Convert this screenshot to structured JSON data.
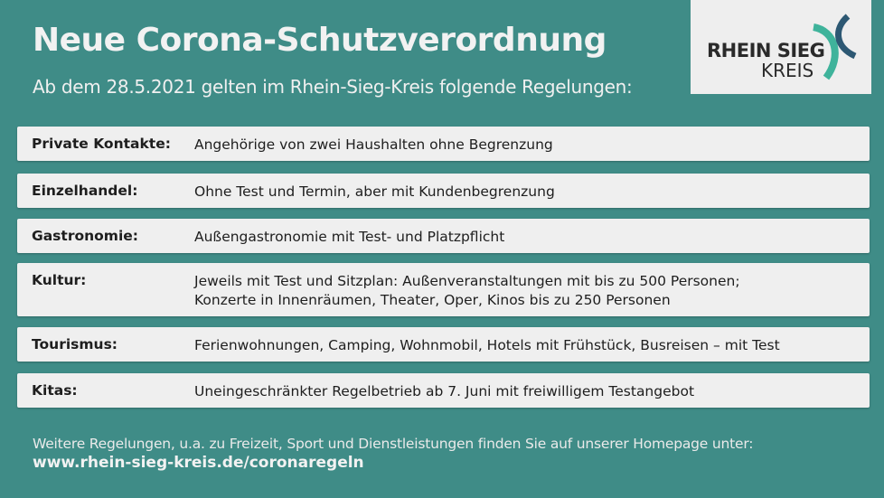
{
  "header": {
    "title": "Neue Corona-Schutzverordnung",
    "subtitle": "Ab dem 28.5.2021 gelten im Rhein-Sieg-Kreis folgende Regelungen:"
  },
  "logo": {
    "line1": "RHEIN SIEG",
    "line2": "KREIS",
    "colors": {
      "teal": "#3fb39b",
      "navy": "#2d5873"
    }
  },
  "rules": [
    {
      "label": "Private Kontakte:",
      "text": [
        "Angehörige von zwei Haushalten ohne Begrenzung"
      ]
    },
    {
      "label": "Einzelhandel:",
      "text": [
        "Ohne Test und Termin, aber mit Kundenbegrenzung"
      ]
    },
    {
      "label": "Gastronomie:",
      "text": [
        "Außengastronomie mit Test- und Platzpflicht"
      ]
    },
    {
      "label": "Kultur:",
      "text": [
        "Jeweils mit Test und Sitzplan: Außenveranstaltungen mit bis zu 500 Personen;",
        "Konzerte in Innenräumen, Theater, Oper, Kinos bis zu 250 Personen"
      ]
    },
    {
      "label": "Tourismus:",
      "text": [
        "Ferienwohnungen, Camping, Wohnmobil, Hotels mit Frühstück, Busreisen – mit Test"
      ]
    },
    {
      "label": "Kitas:",
      "text": [
        "Uneingeschränkter Regelbetrieb ab 7. Juni mit freiwilligem Testangebot"
      ]
    }
  ],
  "footer": {
    "text": "Weitere Regelungen, u.a. zu Freizeit, Sport und Dienstleistungen finden Sie auf unserer Homepage unter:",
    "url": "www.rhein-sieg-kreis.de/coronaregeln"
  },
  "colors": {
    "background": "#3f8c87",
    "panel": "#efefef"
  }
}
